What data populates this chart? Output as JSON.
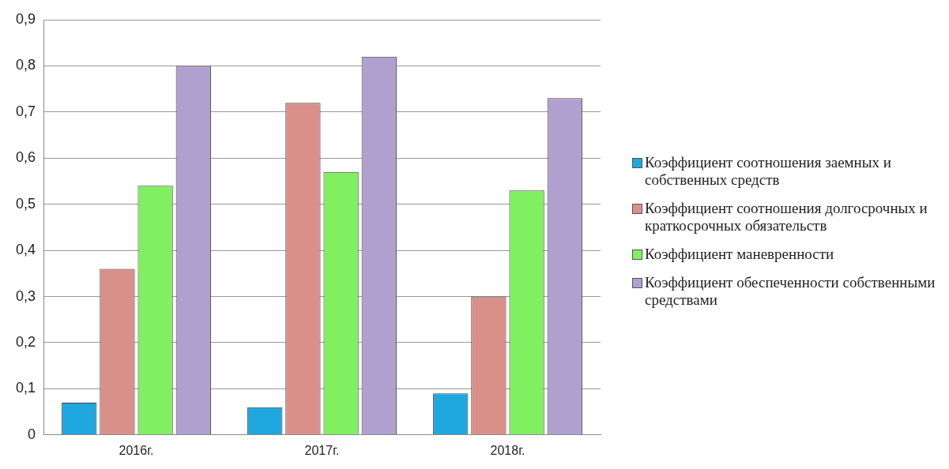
{
  "chart_data": {
    "type": "bar",
    "categories": [
      "2016г.",
      "2017г.",
      "2018г."
    ],
    "series": [
      {
        "name": "Коэффициент соотношения заемных и собственных средств",
        "color": "#1fa8e0",
        "values": [
          0.07,
          0.06,
          0.09
        ]
      },
      {
        "name": "Коэффициент соотношения долгосрочных и краткосрочных обязательств",
        "color": "#d9908a",
        "values": [
          0.36,
          0.72,
          0.3
        ]
      },
      {
        "name": "Коэффициент маневренности",
        "color": "#80f060",
        "values": [
          0.54,
          0.57,
          0.53
        ]
      },
      {
        "name": "Коэффициент обеспеченности собственными средствами",
        "color": "#b0a0d0",
        "values": [
          0.8,
          0.82,
          0.73
        ]
      }
    ],
    "ylim": [
      0,
      0.9
    ],
    "yticks": [
      0,
      {
        "value": 0.1,
        "label": "0,1"
      },
      {
        "value": 0.2,
        "label": "0,2"
      },
      {
        "value": 0.3,
        "label": "0,3"
      },
      {
        "value": 0.4,
        "label": "0,4"
      },
      {
        "value": 0.5,
        "label": "0,5"
      },
      {
        "value": 0.6,
        "label": "0,6"
      },
      {
        "value": 0.7,
        "label": "0,7"
      },
      {
        "value": 0.8,
        "label": "0,8"
      },
      {
        "value": 0.9,
        "label": "0,9"
      }
    ],
    "grid": "y",
    "legend": "right"
  }
}
